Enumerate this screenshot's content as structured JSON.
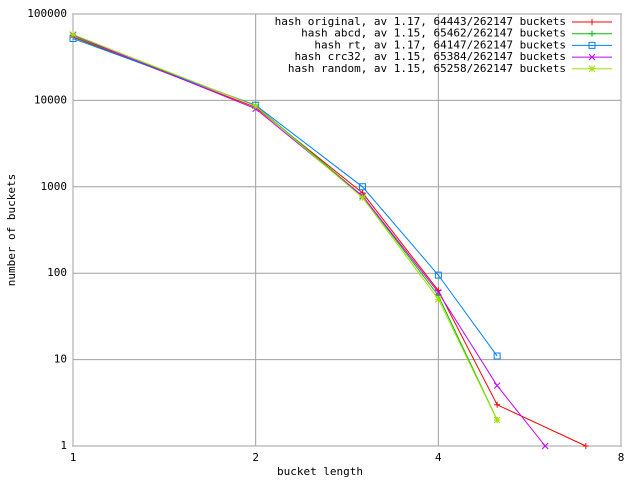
{
  "chart_data": {
    "type": "line",
    "xlabel": "bucket length",
    "ylabel": "number of buckets",
    "xscale": "log",
    "yscale": "log",
    "xlim": [
      1,
      8
    ],
    "ylim": [
      1,
      100000
    ],
    "xticks": [
      1,
      2,
      4,
      8
    ],
    "yticks": [
      1,
      10,
      100,
      1000,
      10000,
      100000
    ],
    "grid": true,
    "legend": "top-right",
    "series": [
      {
        "name": "hash original, av 1.17, 64443/262147 buckets",
        "color": "#ff0000",
        "x": [
          1,
          2,
          3,
          4,
          5,
          7
        ],
        "values": [
          54000,
          8300,
          850,
          63,
          3,
          1
        ]
      },
      {
        "name": "hash abcd, av 1.15, 65462/262147 buckets",
        "color": "#00c000",
        "x": [
          1,
          2,
          3,
          4,
          5
        ],
        "values": [
          55000,
          8700,
          780,
          55,
          2
        ]
      },
      {
        "name": "hash rt, av 1.17, 64147/262147 buckets",
        "color": "#0080ff",
        "x": [
          1,
          2,
          3,
          4,
          5
        ],
        "values": [
          52000,
          8800,
          1000,
          95,
          11
        ]
      },
      {
        "name": "hash crc32, av 1.15, 65384/262147 buckets",
        "color": "#c000ff",
        "x": [
          1,
          2,
          3,
          4,
          5,
          6
        ],
        "values": [
          57000,
          8000,
          780,
          60,
          5,
          1
        ]
      },
      {
        "name": "hash random, av 1.15, 65258/262147 buckets",
        "color": "#a0e000",
        "x": [
          1,
          2,
          3,
          4,
          5
        ],
        "values": [
          58000,
          8600,
          750,
          50,
          2
        ]
      }
    ]
  }
}
